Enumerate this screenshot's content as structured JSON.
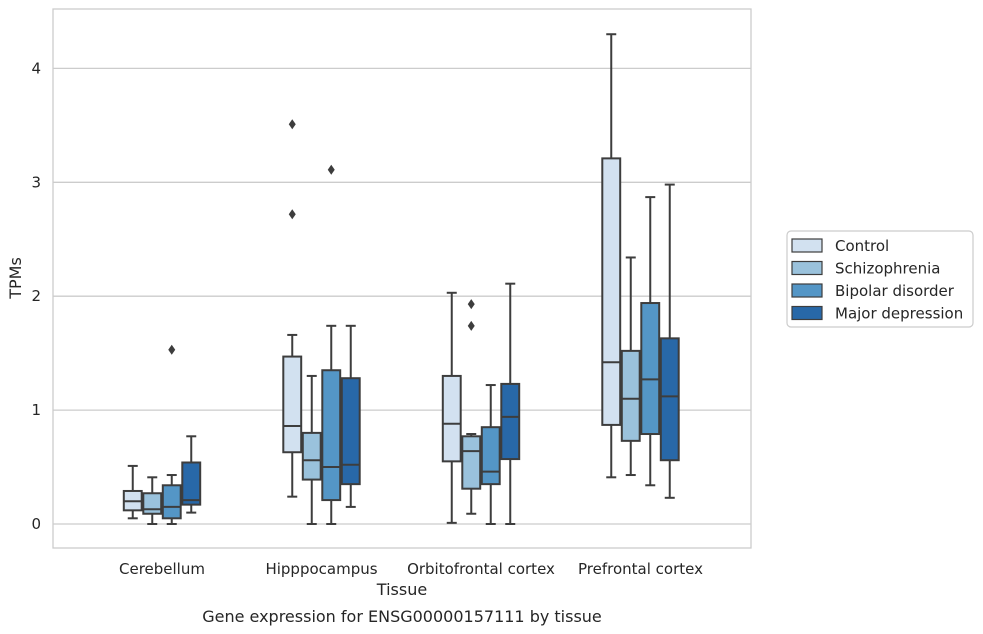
{
  "chart_data": {
    "type": "box",
    "title": "",
    "caption": "Gene expression for ENSG00000157111 by tissue",
    "xlabel": "Tissue",
    "ylabel": "TPMs",
    "ylim": [
      -0.2,
      4.5
    ],
    "yticks": [
      0,
      1,
      2,
      3,
      4
    ],
    "grid": "horizontal",
    "legend_position": "right",
    "categories": [
      "Cerebellum",
      "Hipppocampus",
      "Orbitofrontal cortex",
      "Prefrontal cortex"
    ],
    "series": [
      {
        "name": "Control",
        "color": "#d2e1f0",
        "boxes": [
          {
            "whislo": 0.05,
            "q1": 0.12,
            "med": 0.2,
            "q3": 0.29,
            "whishi": 0.51,
            "fliers": []
          },
          {
            "whislo": 0.24,
            "q1": 0.63,
            "med": 0.86,
            "q3": 1.47,
            "whishi": 1.66,
            "fliers": [
              2.72,
              3.51
            ]
          },
          {
            "whislo": 0.01,
            "q1": 0.55,
            "med": 0.88,
            "q3": 1.3,
            "whishi": 2.03,
            "fliers": []
          },
          {
            "whislo": 0.41,
            "q1": 0.87,
            "med": 1.42,
            "q3": 3.21,
            "whishi": 4.3,
            "fliers": []
          }
        ]
      },
      {
        "name": "Schizophrenia",
        "color": "#9ac2dc",
        "boxes": [
          {
            "whislo": 0.0,
            "q1": 0.09,
            "med": 0.13,
            "q3": 0.27,
            "whishi": 0.41,
            "fliers": []
          },
          {
            "whislo": 0.0,
            "q1": 0.39,
            "med": 0.56,
            "q3": 0.8,
            "whishi": 1.3,
            "fliers": []
          },
          {
            "whislo": 0.09,
            "q1": 0.31,
            "med": 0.64,
            "q3": 0.77,
            "whishi": 0.79,
            "fliers": [
              1.74,
              1.93
            ]
          },
          {
            "whislo": 0.43,
            "q1": 0.73,
            "med": 1.1,
            "q3": 1.52,
            "whishi": 2.34,
            "fliers": []
          }
        ]
      },
      {
        "name": "Bipolar disorder",
        "color": "#5496c6",
        "boxes": [
          {
            "whislo": 0.0,
            "q1": 0.05,
            "med": 0.15,
            "q3": 0.34,
            "whishi": 0.43,
            "fliers": [
              1.53
            ]
          },
          {
            "whislo": 0.0,
            "q1": 0.21,
            "med": 0.5,
            "q3": 1.35,
            "whishi": 1.74,
            "fliers": [
              3.11
            ]
          },
          {
            "whislo": 0.0,
            "q1": 0.35,
            "med": 0.46,
            "q3": 0.85,
            "whishi": 1.22,
            "fliers": []
          },
          {
            "whislo": 0.34,
            "q1": 0.79,
            "med": 1.27,
            "q3": 1.94,
            "whishi": 2.87,
            "fliers": []
          }
        ]
      },
      {
        "name": "Major depression",
        "color": "#2868a8",
        "boxes": [
          {
            "whislo": 0.1,
            "q1": 0.17,
            "med": 0.21,
            "q3": 0.54,
            "whishi": 0.77,
            "fliers": []
          },
          {
            "whislo": 0.15,
            "q1": 0.35,
            "med": 0.52,
            "q3": 1.28,
            "whishi": 1.74,
            "fliers": []
          },
          {
            "whislo": 0.0,
            "q1": 0.57,
            "med": 0.94,
            "q3": 1.23,
            "whishi": 2.11,
            "fliers": []
          },
          {
            "whislo": 0.23,
            "q1": 0.56,
            "med": 1.12,
            "q3": 1.63,
            "whishi": 2.98,
            "fliers": []
          }
        ]
      }
    ]
  }
}
